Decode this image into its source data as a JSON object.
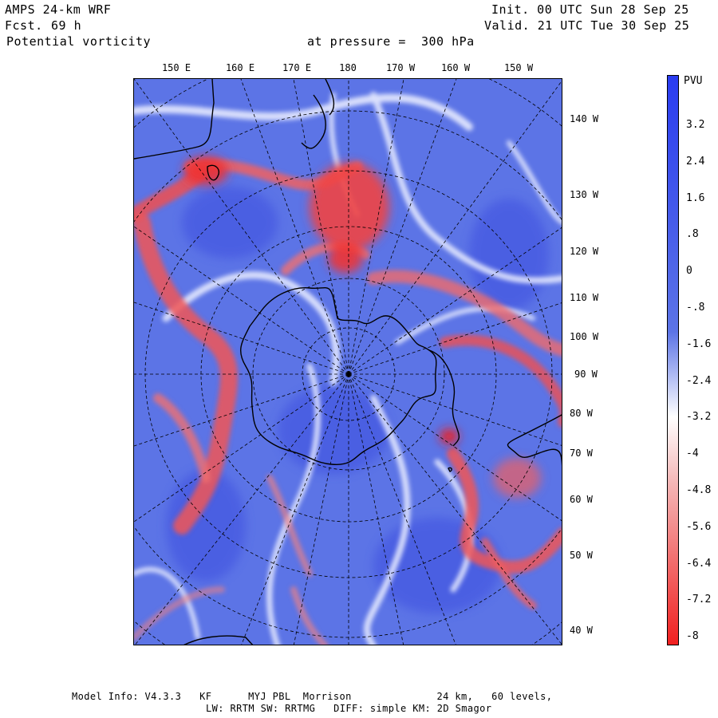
{
  "header": {
    "model": "AMPS 24-km WRF",
    "fcst_label": "Fcst.",
    "fcst_value": "69 h",
    "field": "Potential vorticity",
    "pressure_text": "at pressure =  300 hPa",
    "init": "Init. 00 UTC Sun 28 Sep 25",
    "valid": "Valid. 21 UTC Tue 30 Sep 25"
  },
  "map": {
    "lon_labels_top": [
      "150 E",
      "160 E",
      "170 E",
      "180",
      "170 W",
      "160 W",
      "150 W"
    ],
    "lat_labels_right": [
      "140 W",
      "130 W",
      "120 W",
      "110 W",
      "100 W",
      "90 W",
      "80 W",
      "70 W",
      "60 W",
      "50 W",
      "40 W"
    ],
    "colors": {
      "positive": "#2a3cf0",
      "negative": "#f02020",
      "neutral": "#ffffff",
      "background": "#5c74e6"
    }
  },
  "colorbar": {
    "unit": "PVU",
    "ticks": [
      "3.2",
      "2.4",
      "1.6",
      ".8",
      "0",
      "-.8",
      "-1.6",
      "-2.4",
      "-3.2",
      "-4",
      "-4.8",
      "-5.6",
      "-6.4",
      "-7.2",
      "-8"
    ]
  },
  "footer": {
    "line1": "Model Info: V4.3.3   KF      MYJ PBL  Morrison              24 km,   60 levels,",
    "line2": "LW: RRTM SW: RRTMG   DIFF: simple KM: 2D Smagor"
  }
}
